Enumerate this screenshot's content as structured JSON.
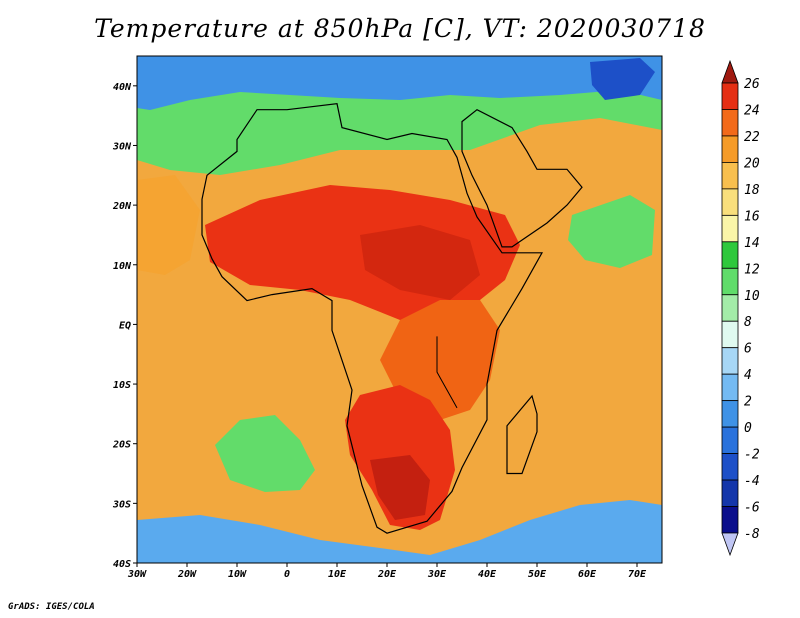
{
  "title": "Temperature at 850hPa [C], VT: 2020030718",
  "credit": "GrADS: IGES/COLA",
  "map": {
    "lon_range": [
      -30,
      75
    ],
    "lat_range": [
      -40,
      45
    ],
    "lon_ticks": [
      "30W",
      "20W",
      "10W",
      "0",
      "10E",
      "20E",
      "30E",
      "40E",
      "50E",
      "60E",
      "70E"
    ],
    "lat_ticks": [
      "40N",
      "30N",
      "20N",
      "10N",
      "EQ",
      "10S",
      "20S",
      "30S",
      "40S"
    ],
    "background_color": "#f2a83e",
    "regions": [
      {
        "name": "north-cool-band",
        "color": "#62dc6a"
      },
      {
        "name": "mediterranean-cold",
        "color": "#3f92e6"
      },
      {
        "name": "caspian-very-cold",
        "color": "#1d50c8"
      },
      {
        "name": "arabian-sea-cool",
        "color": "#62dc6a"
      },
      {
        "name": "sahel-hot",
        "color": "#ea3214"
      },
      {
        "name": "east-africa-hot",
        "color": "#f06414"
      },
      {
        "name": "south-africa-hot",
        "color": "#ea3214"
      },
      {
        "name": "south-atlantic-cool",
        "color": "#62dc6a"
      },
      {
        "name": "southern-ocean-cold",
        "color": "#5aaaee"
      }
    ]
  },
  "colorbar": {
    "levels": [
      "26",
      "24",
      "22",
      "20",
      "18",
      "16",
      "14",
      "12",
      "10",
      "8",
      "6",
      "4",
      "2",
      "0",
      "-2",
      "-4",
      "-6",
      "-8"
    ],
    "colors": [
      "#a01a10",
      "#e52f14",
      "#f26a1a",
      "#f59b28",
      "#f8bf4e",
      "#f9df7c",
      "#faf5a8",
      "#2ec83c",
      "#60dc6a",
      "#a3eca8",
      "#e0faf0",
      "#a7d7f6",
      "#74baf2",
      "#3f92e6",
      "#2a72dc",
      "#1d50c8",
      "#1436aa",
      "#0b0f8c",
      "#c0c6f4"
    ]
  }
}
